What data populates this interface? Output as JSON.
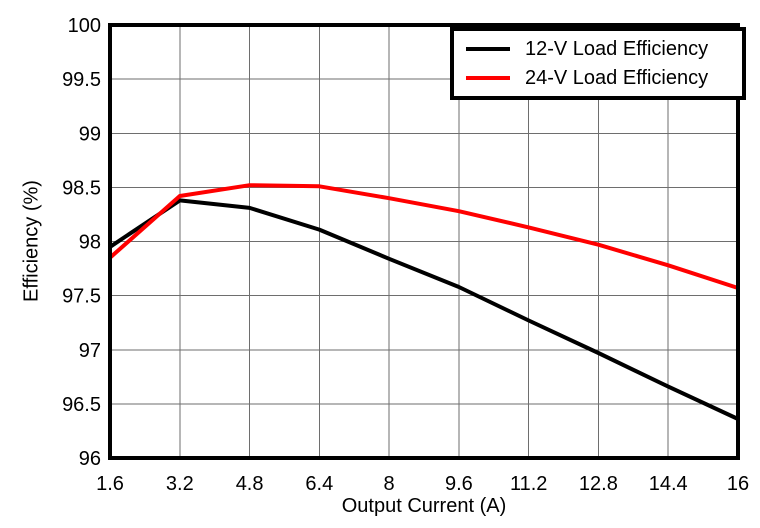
{
  "chart_data": {
    "type": "line",
    "title": "",
    "xlabel": "Output Current (A)",
    "ylabel": "Efficiency (%)",
    "xlim": [
      1.6,
      16
    ],
    "ylim": [
      96,
      100
    ],
    "grid": true,
    "legend_position": "top-right-inside",
    "x": [
      1.6,
      3.2,
      4.8,
      6.4,
      8,
      9.6,
      11.2,
      12.8,
      14.4,
      16
    ],
    "x_tick_values": [
      1.6,
      3.2,
      4.8,
      6.4,
      8,
      9.6,
      11.2,
      12.8,
      14.4,
      16
    ],
    "x_tick_labels": [
      "1.6",
      "3.2",
      "4.8",
      "6.4",
      "8",
      "9.6",
      "11.2",
      "12.8",
      "14.4",
      "16"
    ],
    "y_tick_values": [
      96,
      96.5,
      97,
      97.5,
      98,
      98.5,
      99,
      99.5,
      100
    ],
    "y_tick_labels": [
      "96",
      "96.5",
      "97",
      "97.5",
      "98",
      "98.5",
      "99",
      "99.5",
      "100"
    ],
    "series": [
      {
        "name": "12-V Load Efficiency",
        "color": "#000000",
        "values": [
          97.95,
          98.38,
          98.31,
          98.11,
          97.84,
          97.58,
          97.27,
          96.97,
          96.66,
          96.36
        ]
      },
      {
        "name": "24-V Load Efficiency",
        "color": "#ff0000",
        "values": [
          97.85,
          98.42,
          98.52,
          98.51,
          98.4,
          98.28,
          98.13,
          97.97,
          97.78,
          97.57
        ]
      }
    ]
  }
}
